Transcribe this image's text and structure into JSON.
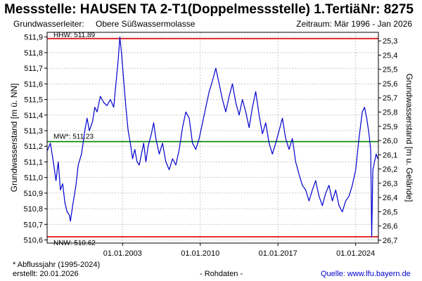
{
  "header": {
    "title": "Messstelle: HAUSEN TA 2-T1(Doppelmessstelle) 1.Tertiär_gw",
    "nr": "Nr: 8275",
    "aquifer_label": "Grundwasserleiter:",
    "aquifer_value": "Obere Süßwassermolasse",
    "period": "Zeitraum: Mär 1996 - Jan 2026"
  },
  "footer": {
    "note": "* Abflussjahr (1995-2024)",
    "created": "erstellt:  20.01.2026",
    "rawdata": "- Rohdaten -",
    "source_label": "Quelle:",
    "source_url": "www.lfu.bayern.de"
  },
  "colors": {
    "series": "#0000cc",
    "hhw": "#dd0000",
    "nnw": "#dd0000",
    "mw": "#008000",
    "grid": "#c8c8c8",
    "link": "#0000cc"
  },
  "chart_data": {
    "type": "line",
    "xlabel": "",
    "ylabel_left": "Grundwasserstand [m ü. NN]",
    "ylabel_right": "Grundwasserstand [m u. Gelände]",
    "xlim": [
      1996.2,
      2026.05
    ],
    "ylim": [
      510.58,
      511.93
    ],
    "y_ticks": [
      "510,6",
      "510,7",
      "510,8",
      "510,9",
      "511,0",
      "511,1",
      "511,2",
      "511,3",
      "511,4",
      "511,5",
      "511,6",
      "511,7",
      "511,8",
      "511,9"
    ],
    "y_ticks_right": [
      "25,3",
      "25,4",
      "25,5",
      "25,6",
      "25,7",
      "25,8",
      "25,9",
      "26,0",
      "26,1",
      "26,2",
      "26,3",
      "26,4",
      "26,5",
      "26,6",
      "26,7"
    ],
    "right_axis_range": [
      25.24,
      26.72
    ],
    "x_ticks": [
      {
        "label": "01.01.2003",
        "x": 2003.0
      },
      {
        "label": "01.01.2010",
        "x": 2010.0
      },
      {
        "label": "01.01.2017",
        "x": 2017.0
      },
      {
        "label": "01.01.2024",
        "x": 2024.0
      }
    ],
    "grid": true,
    "reference_lines": [
      {
        "name": "HHW",
        "label": "HHW: 511.89",
        "value": 511.89,
        "color": "#dd0000"
      },
      {
        "name": "MW",
        "label": "MW*: 511.23",
        "value": 511.23,
        "color": "#008000"
      },
      {
        "name": "NNW",
        "label": "NNW: 510.62",
        "value": 510.62,
        "color": "#dd0000"
      }
    ],
    "series": [
      {
        "color": "#0000cc",
        "points": [
          [
            1996.2,
            511.17
          ],
          [
            1996.5,
            511.22
          ],
          [
            1996.8,
            511.08
          ],
          [
            1997.0,
            510.98
          ],
          [
            1997.2,
            511.1
          ],
          [
            1997.4,
            510.92
          ],
          [
            1997.6,
            510.96
          ],
          [
            1997.8,
            510.84
          ],
          [
            1998.0,
            510.78
          ],
          [
            1998.2,
            510.76
          ],
          [
            1998.3,
            510.72
          ],
          [
            1998.5,
            510.82
          ],
          [
            1998.8,
            510.95
          ],
          [
            1999.0,
            511.08
          ],
          [
            1999.3,
            511.15
          ],
          [
            1999.6,
            511.3
          ],
          [
            1999.8,
            511.38
          ],
          [
            2000.0,
            511.3
          ],
          [
            2000.3,
            511.36
          ],
          [
            2000.5,
            511.45
          ],
          [
            2000.7,
            511.42
          ],
          [
            2001.0,
            511.52
          ],
          [
            2001.3,
            511.48
          ],
          [
            2001.6,
            511.46
          ],
          [
            2001.9,
            511.5
          ],
          [
            2002.2,
            511.45
          ],
          [
            2002.4,
            511.6
          ],
          [
            2002.6,
            511.75
          ],
          [
            2002.75,
            511.9
          ],
          [
            2002.9,
            511.8
          ],
          [
            2003.1,
            511.62
          ],
          [
            2003.3,
            511.45
          ],
          [
            2003.5,
            511.3
          ],
          [
            2003.7,
            511.22
          ],
          [
            2003.9,
            511.12
          ],
          [
            2004.1,
            511.18
          ],
          [
            2004.3,
            511.1
          ],
          [
            2004.5,
            511.08
          ],
          [
            2004.7,
            511.15
          ],
          [
            2004.9,
            511.22
          ],
          [
            2005.1,
            511.1
          ],
          [
            2005.3,
            511.2
          ],
          [
            2005.6,
            511.28
          ],
          [
            2005.8,
            511.35
          ],
          [
            2006.0,
            511.25
          ],
          [
            2006.3,
            511.15
          ],
          [
            2006.6,
            511.22
          ],
          [
            2006.9,
            511.1
          ],
          [
            2007.2,
            511.05
          ],
          [
            2007.5,
            511.12
          ],
          [
            2007.8,
            511.08
          ],
          [
            2008.1,
            511.18
          ],
          [
            2008.4,
            511.32
          ],
          [
            2008.7,
            511.42
          ],
          [
            2009.0,
            511.38
          ],
          [
            2009.3,
            511.22
          ],
          [
            2009.6,
            511.18
          ],
          [
            2009.9,
            511.25
          ],
          [
            2010.2,
            511.35
          ],
          [
            2010.5,
            511.45
          ],
          [
            2010.8,
            511.55
          ],
          [
            2011.1,
            511.62
          ],
          [
            2011.4,
            511.7
          ],
          [
            2011.7,
            511.6
          ],
          [
            2012.0,
            511.5
          ],
          [
            2012.3,
            511.42
          ],
          [
            2012.6,
            511.52
          ],
          [
            2012.9,
            511.6
          ],
          [
            2013.2,
            511.48
          ],
          [
            2013.5,
            511.4
          ],
          [
            2013.8,
            511.5
          ],
          [
            2014.1,
            511.42
          ],
          [
            2014.4,
            511.32
          ],
          [
            2014.7,
            511.45
          ],
          [
            2015.0,
            511.55
          ],
          [
            2015.3,
            511.4
          ],
          [
            2015.6,
            511.28
          ],
          [
            2015.9,
            511.35
          ],
          [
            2016.2,
            511.22
          ],
          [
            2016.5,
            511.15
          ],
          [
            2016.8,
            511.22
          ],
          [
            2017.1,
            511.3
          ],
          [
            2017.4,
            511.38
          ],
          [
            2017.7,
            511.25
          ],
          [
            2018.0,
            511.18
          ],
          [
            2018.3,
            511.25
          ],
          [
            2018.6,
            511.1
          ],
          [
            2018.9,
            511.02
          ],
          [
            2019.2,
            510.95
          ],
          [
            2019.5,
            510.92
          ],
          [
            2019.8,
            510.85
          ],
          [
            2020.1,
            510.92
          ],
          [
            2020.4,
            510.98
          ],
          [
            2020.7,
            510.88
          ],
          [
            2021.0,
            510.82
          ],
          [
            2021.3,
            510.9
          ],
          [
            2021.6,
            510.95
          ],
          [
            2021.9,
            510.85
          ],
          [
            2022.2,
            510.92
          ],
          [
            2022.5,
            510.82
          ],
          [
            2022.8,
            510.78
          ],
          [
            2023.1,
            510.85
          ],
          [
            2023.4,
            510.88
          ],
          [
            2023.7,
            510.95
          ],
          [
            2024.0,
            511.05
          ],
          [
            2024.3,
            511.25
          ],
          [
            2024.6,
            511.42
          ],
          [
            2024.8,
            511.45
          ],
          [
            2025.0,
            511.38
          ],
          [
            2025.2,
            511.28
          ],
          [
            2025.35,
            511.18
          ],
          [
            2025.45,
            510.62
          ],
          [
            2025.55,
            511.05
          ],
          [
            2025.7,
            511.1
          ],
          [
            2025.85,
            511.15
          ],
          [
            2026.0,
            511.12
          ]
        ]
      }
    ]
  }
}
